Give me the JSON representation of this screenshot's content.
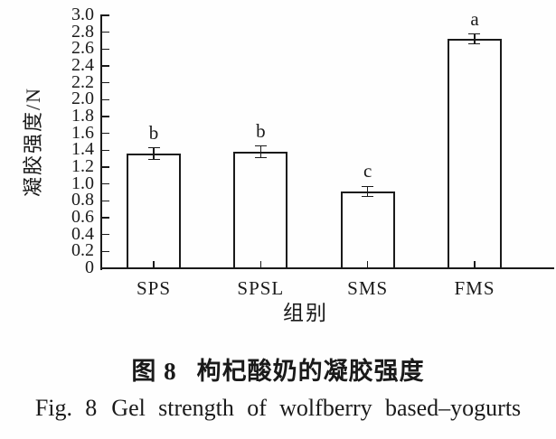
{
  "page": {
    "background": "#fefefe",
    "ink_color": "#1a1a1a"
  },
  "chart_data": {
    "type": "bar",
    "categories": [
      "SPS",
      "SPSL",
      "SMS",
      "FMS"
    ],
    "values": [
      1.36,
      1.38,
      0.91,
      2.72
    ],
    "errors": [
      0.07,
      0.07,
      0.06,
      0.06
    ],
    "sig_letters": [
      "b",
      "b",
      "c",
      "a"
    ],
    "xlabel": "组别",
    "ylabel": "凝胶强度/N",
    "ylim": [
      0,
      3.0
    ],
    "ytick_step": 0.2,
    "ytick_labels": [
      "0",
      "0.2",
      "0.4",
      "0.6",
      "0.8",
      "1.0",
      "1.2",
      "1.4",
      "1.6",
      "1.8",
      "2.0",
      "2.2",
      "2.4",
      "2.6",
      "2.8",
      "3.0"
    ],
    "bar_fill": "#fefefe",
    "line_color": "#1a1a1a",
    "grid": false,
    "legend": "none",
    "ticks_direction": "in"
  },
  "caption": {
    "zh_prefix": "图 8",
    "zh_title": "枸杞酸奶的凝胶强度",
    "en_prefix": "Fig. 8",
    "en_title": "Gel strength of wolfberry based–yogurts"
  }
}
